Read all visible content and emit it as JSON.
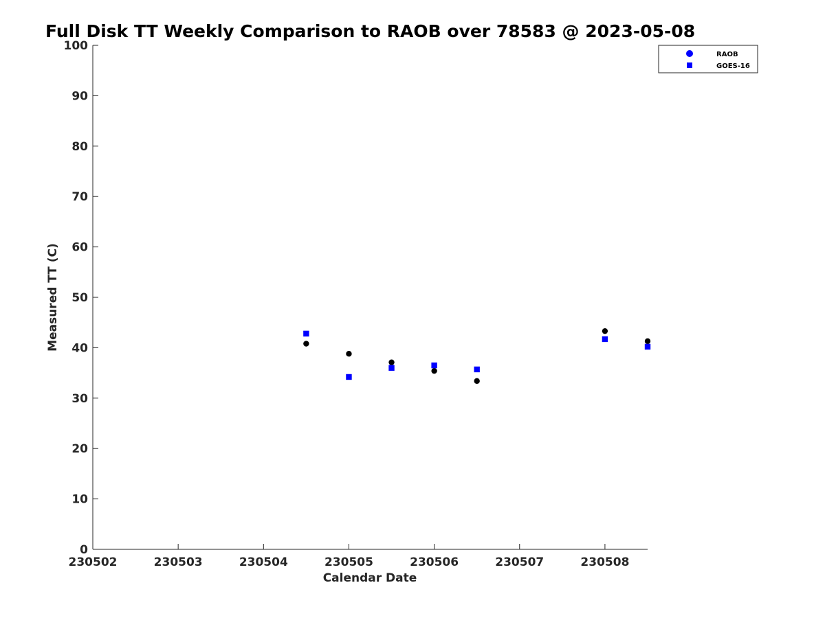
{
  "chart_data": {
    "type": "scatter",
    "title": "Full Disk TT Weekly Comparison to RAOB over 78583 @ 2023-05-08",
    "xlabel": "Calendar Date",
    "ylabel": "Measured TT (C)",
    "xlim": [
      230502,
      230508.5
    ],
    "ylim": [
      0,
      100
    ],
    "x_ticks": [
      230502,
      230503,
      230504,
      230505,
      230506,
      230507,
      230508
    ],
    "x_tick_labels": [
      "230502",
      "230503",
      "230504",
      "230505",
      "230506",
      "230507",
      "230508"
    ],
    "y_ticks": [
      0,
      10,
      20,
      30,
      40,
      50,
      60,
      70,
      80,
      90,
      100
    ],
    "y_tick_labels": [
      "0",
      "10",
      "20",
      "30",
      "40",
      "50",
      "60",
      "70",
      "80",
      "90",
      "100"
    ],
    "grid": false,
    "legend_position": "top-right",
    "series": [
      {
        "name": "RAOB",
        "marker": "circle",
        "color": "#000000",
        "legend_color": "#0000ff",
        "points": [
          {
            "x": 230504.5,
            "y": 40.8
          },
          {
            "x": 230505.0,
            "y": 38.8
          },
          {
            "x": 230505.5,
            "y": 37.1
          },
          {
            "x": 230506.0,
            "y": 35.4
          },
          {
            "x": 230506.5,
            "y": 33.4
          },
          {
            "x": 230508.0,
            "y": 43.3
          },
          {
            "x": 230508.5,
            "y": 41.3
          }
        ]
      },
      {
        "name": "GOES-16",
        "marker": "square",
        "color": "#0000ff",
        "legend_color": "#0000ff",
        "points": [
          {
            "x": 230504.5,
            "y": 42.8
          },
          {
            "x": 230505.0,
            "y": 34.2
          },
          {
            "x": 230505.5,
            "y": 36.0
          },
          {
            "x": 230506.0,
            "y": 36.5
          },
          {
            "x": 230506.5,
            "y": 35.7
          },
          {
            "x": 230508.0,
            "y": 41.7
          },
          {
            "x": 230508.5,
            "y": 40.2
          }
        ]
      }
    ]
  }
}
